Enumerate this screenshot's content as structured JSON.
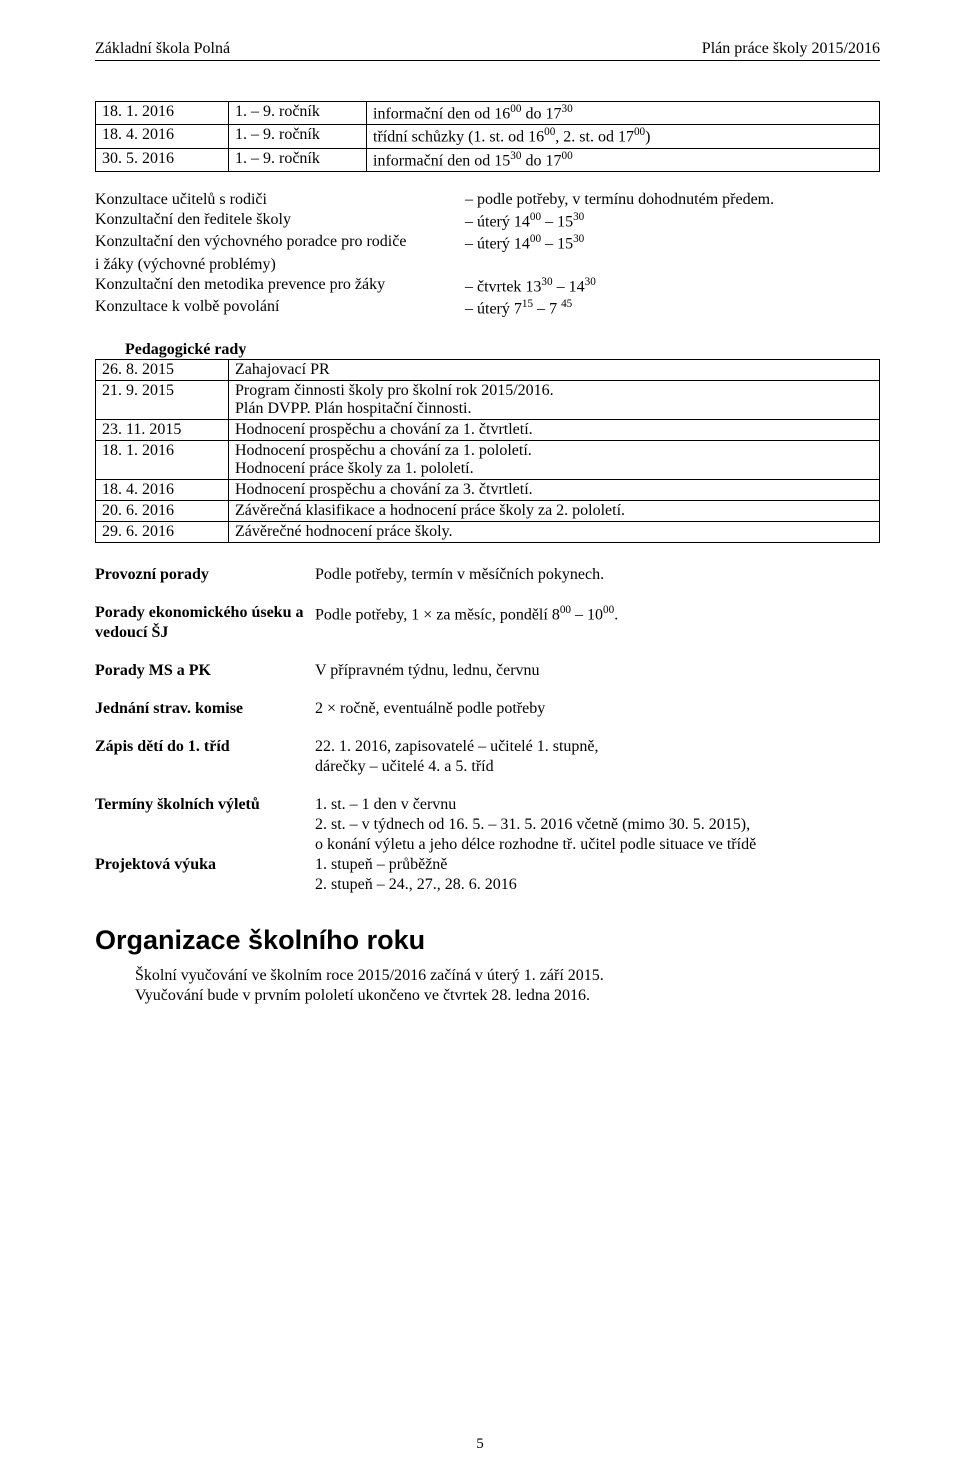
{
  "header": {
    "left": "Základní škola Polná",
    "right": "Plán práce školy 2015/2016"
  },
  "sched_table": {
    "rows": [
      {
        "date": "18. 1. 2016",
        "grade": "1. – 9. ročník",
        "desc_pre": "informační den od 16",
        "desc_sup1": "00",
        "desc_mid": " do 17",
        "desc_sup2": "30",
        "desc_post": ""
      },
      {
        "date": "18. 4. 2016",
        "grade": "1. – 9. ročník",
        "desc_pre": "třídní schůzky (1. st. od 16",
        "desc_sup1": "00",
        "desc_mid": ", 2. st. od 17",
        "desc_sup2": "00",
        "desc_post": ")"
      },
      {
        "date": "30. 5. 2016",
        "grade": "1. – 9. ročník",
        "desc_pre": "informační den od 15",
        "desc_sup1": "30",
        "desc_mid": " do 17",
        "desc_sup2": "00",
        "desc_post": ""
      }
    ]
  },
  "konz": {
    "r1_left": "Konzultace učitelů s rodiči",
    "r1_right": "– podle potřeby, v termínu dohodnutém předem.",
    "r2_left": "Konzultační den ředitele školy",
    "r2_right_pre": "– úterý 14",
    "r2_sup1": "00",
    "r2_mid": " – 15",
    "r2_sup2": "30",
    "r3_left_a": "Konzultační den výchovného poradce pro rodiče",
    "r3_right_pre": "– úterý 14",
    "r3_sup1": "00",
    "r3_mid": " – 15",
    "r3_sup2": "30",
    "r3_left_b": "i žáky (výchovné problémy)",
    "r4_left": "Konzultační den metodika prevence pro žáky",
    "r4_right_pre": "– čtvrtek 13",
    "r4_sup1": "30",
    "r4_mid": " – 14",
    "r4_sup2": "30",
    "r5_left": "Konzultace k volbě povolání",
    "r5_right_pre": "– úterý 7",
    "r5_sup1": "15",
    "r5_mid": " – 7 ",
    "r5_sup2": "45"
  },
  "ped_rady": {
    "title": "Pedagogické rady",
    "rows": [
      {
        "date": "26. 8. 2015",
        "body": "Zahajovací PR"
      },
      {
        "date": "21. 9. 2015",
        "body": "Program činnosti školy pro školní rok 2015/2016.\nPlán DVPP. Plán hospitační činnosti."
      },
      {
        "date": "23. 11. 2015",
        "body": "Hodnocení prospěchu a chování za 1. čtvrtletí."
      },
      {
        "date": "18. 1. 2016",
        "body": "Hodnocení prospěchu a chování za 1. pololetí.\nHodnocení práce školy za 1. pololetí."
      },
      {
        "date": "18. 4. 2016",
        "body": "Hodnocení prospěchu a chování za 3. čtvrtletí."
      },
      {
        "date": "20. 6. 2016",
        "body": "Závěrečná klasifikace a hodnocení práce školy za 2. pololetí."
      },
      {
        "date": "29. 6. 2016",
        "body": "Závěrečné hodnocení práce školy."
      }
    ]
  },
  "defs": {
    "d1_l": "Provozní porady",
    "d1_r": "Podle potřeby, termín v měsíčních pokynech.",
    "d2_l": "Porady ekonomického úseku a vedoucí ŠJ",
    "d2_r_pre": "Podle potřeby, 1 × za měsíc, pondělí 8",
    "d2_sup1": "00",
    "d2_mid": " – 10",
    "d2_sup2": "00",
    "d2_post": ".",
    "d3_l": "Porady MS a PK",
    "d3_r": "V přípravném týdnu, lednu, červnu",
    "d4_l": "Jednání strav. komise",
    "d4_r": "2 × ročně, eventuálně podle potřeby",
    "d5_l": "Zápis dětí do 1. tříd",
    "d5_r": " 22. 1. 2016, zapisovatelé – učitelé 1. stupně,\ndárečky – učitelé 4. a 5. tříd",
    "d6_l": "Termíny školních výletů",
    "d6_r": "1. st. – 1 den v  červnu\n2. st. –  v týdnech od 16. 5. – 31. 5. 2016 včetně (mimo 30. 5. 2015),\no konání výletu  a jeho délce rozhodne tř. učitel podle situace ve třídě",
    "d7_l": "Projektová výuka",
    "d7_r": "1. stupeň – průběžně\n2. stupeň – 24., 27., 28. 6. 2016"
  },
  "org": {
    "heading": "Organizace školního roku",
    "p1": "Školní vyučování ve školním roce 2015/2016 začíná v  úterý 1. září 2015.",
    "p2": "Vyučování bude v prvním pololetí ukončeno ve čtvrtek 28. ledna 2016."
  },
  "page_number": "5"
}
